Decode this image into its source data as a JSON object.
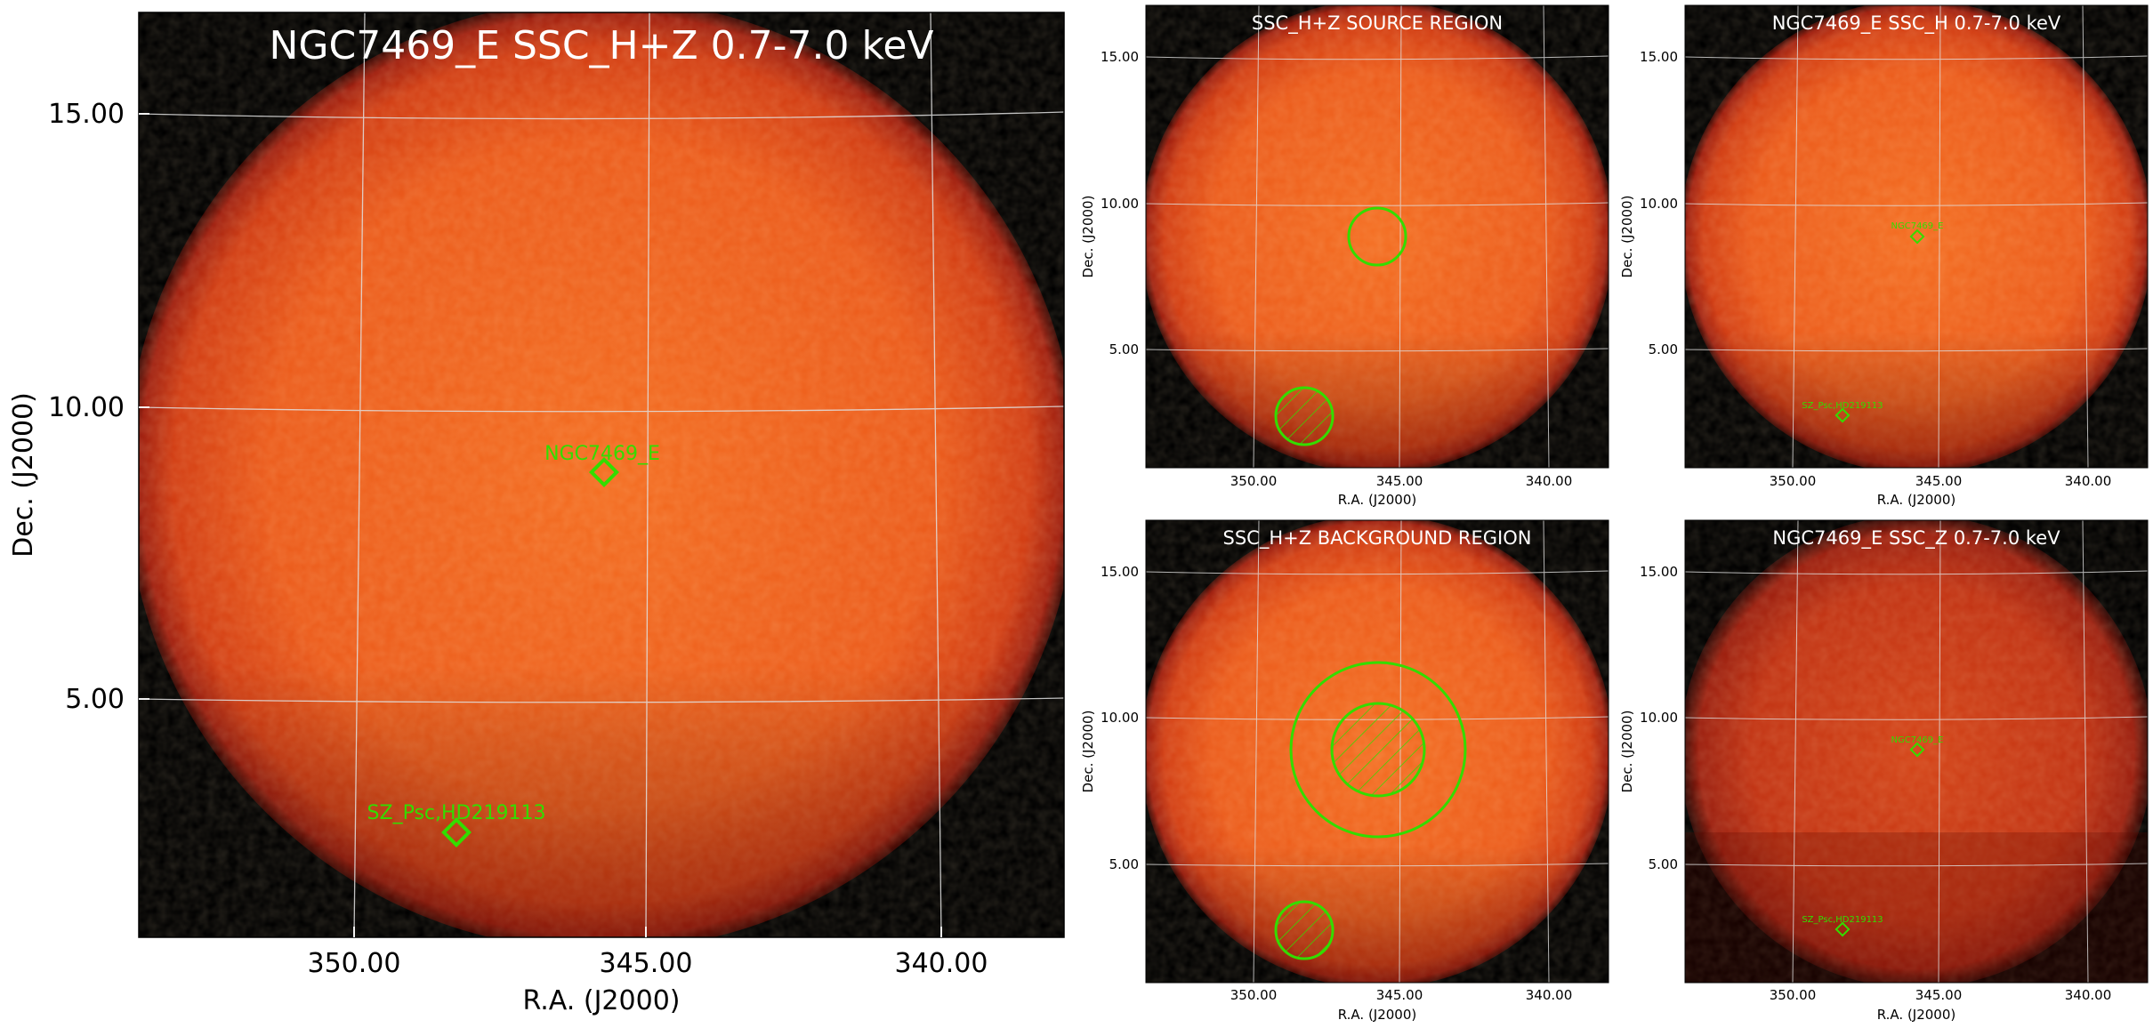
{
  "colors": {
    "background": "#000000",
    "heat_center": "#f26a1f",
    "heat_mid": "#e8541a",
    "heat_edge": "#b82a10",
    "heat_dark": "#8a1a0a",
    "grid": "#d8d8d8",
    "region": "#33dd00",
    "title_text": "#ffffff"
  },
  "main_panel": {
    "title": "NGC7469_E SSC_H+Z 0.7-7.0 keV",
    "ylabel": "Dec. (J2000)",
    "xlabel": "R.A. (J2000)",
    "yticks": [
      "15.00",
      "10.00",
      "5.00"
    ],
    "xticks": [
      "350.00",
      "345.00",
      "340.00"
    ],
    "source_labels": [
      "NGC7469_E",
      "SZ_Psc,HD219113"
    ]
  },
  "source_region_panel": {
    "title": "SSC_H+Z SOURCE REGION",
    "ylabel": "Dec. (J2000)",
    "xlabel": "R.A. (J2000)",
    "yticks": [
      "15.00",
      "10.00",
      "5.00"
    ],
    "xticks": [
      "350.00",
      "345.00",
      "340.00"
    ]
  },
  "ssc_h_panel": {
    "title": "NGC7469_E SSC_H 0.7-7.0 keV",
    "ylabel": "Dec. (J2000)",
    "xlabel": "R.A. (J2000)",
    "yticks": [
      "15.00",
      "10.00",
      "5.00"
    ],
    "xticks": [
      "350.00",
      "345.00",
      "340.00"
    ],
    "source_labels": [
      "NGC7469_E",
      "SZ_Psc,HD219113"
    ]
  },
  "background_region_panel": {
    "title": "SSC_H+Z BACKGROUND REGION",
    "ylabel": "Dec. (J2000)",
    "xlabel": "R.A. (J2000)",
    "yticks": [
      "15.00",
      "10.00",
      "5.00"
    ],
    "xticks": [
      "350.00",
      "345.00",
      "340.00"
    ]
  },
  "ssc_z_panel": {
    "title": "NGC7469_E SSC_Z 0.7-7.0 keV",
    "ylabel": "Dec. (J2000)",
    "xlabel": "R.A. (J2000)",
    "yticks": [
      "15.00",
      "10.00",
      "5.00"
    ],
    "xticks": [
      "350.00",
      "345.00",
      "340.00"
    ],
    "source_labels": [
      "NGC7469_E",
      "SZ_Psc,HD219113"
    ]
  }
}
